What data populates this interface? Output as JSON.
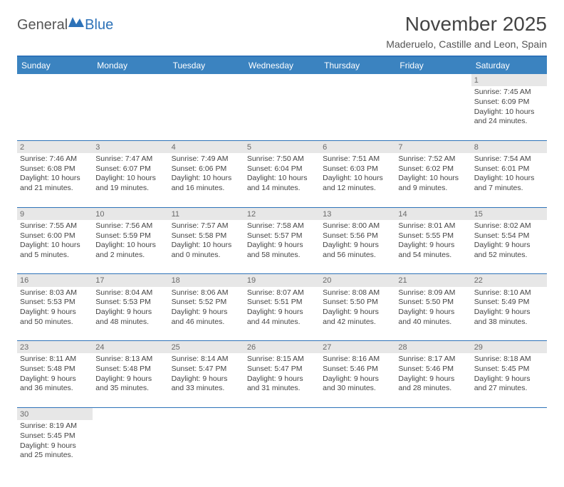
{
  "logo": {
    "general": "General",
    "blue": "Blue"
  },
  "header": {
    "month_title": "November 2025",
    "location": "Maderuelo, Castille and Leon, Spain"
  },
  "colors": {
    "header_bg": "#3b83c0",
    "rule": "#2d72b8",
    "daynum_bg": "#e7e7e7",
    "text": "#444444"
  },
  "day_headers": [
    "Sunday",
    "Monday",
    "Tuesday",
    "Wednesday",
    "Thursday",
    "Friday",
    "Saturday"
  ],
  "weeks": [
    [
      null,
      null,
      null,
      null,
      null,
      null,
      {
        "n": "1",
        "sr": "Sunrise: 7:45 AM",
        "ss": "Sunset: 6:09 PM",
        "d1": "Daylight: 10 hours",
        "d2": "and 24 minutes."
      }
    ],
    [
      {
        "n": "2",
        "sr": "Sunrise: 7:46 AM",
        "ss": "Sunset: 6:08 PM",
        "d1": "Daylight: 10 hours",
        "d2": "and 21 minutes."
      },
      {
        "n": "3",
        "sr": "Sunrise: 7:47 AM",
        "ss": "Sunset: 6:07 PM",
        "d1": "Daylight: 10 hours",
        "d2": "and 19 minutes."
      },
      {
        "n": "4",
        "sr": "Sunrise: 7:49 AM",
        "ss": "Sunset: 6:06 PM",
        "d1": "Daylight: 10 hours",
        "d2": "and 16 minutes."
      },
      {
        "n": "5",
        "sr": "Sunrise: 7:50 AM",
        "ss": "Sunset: 6:04 PM",
        "d1": "Daylight: 10 hours",
        "d2": "and 14 minutes."
      },
      {
        "n": "6",
        "sr": "Sunrise: 7:51 AM",
        "ss": "Sunset: 6:03 PM",
        "d1": "Daylight: 10 hours",
        "d2": "and 12 minutes."
      },
      {
        "n": "7",
        "sr": "Sunrise: 7:52 AM",
        "ss": "Sunset: 6:02 PM",
        "d1": "Daylight: 10 hours",
        "d2": "and 9 minutes."
      },
      {
        "n": "8",
        "sr": "Sunrise: 7:54 AM",
        "ss": "Sunset: 6:01 PM",
        "d1": "Daylight: 10 hours",
        "d2": "and 7 minutes."
      }
    ],
    [
      {
        "n": "9",
        "sr": "Sunrise: 7:55 AM",
        "ss": "Sunset: 6:00 PM",
        "d1": "Daylight: 10 hours",
        "d2": "and 5 minutes."
      },
      {
        "n": "10",
        "sr": "Sunrise: 7:56 AM",
        "ss": "Sunset: 5:59 PM",
        "d1": "Daylight: 10 hours",
        "d2": "and 2 minutes."
      },
      {
        "n": "11",
        "sr": "Sunrise: 7:57 AM",
        "ss": "Sunset: 5:58 PM",
        "d1": "Daylight: 10 hours",
        "d2": "and 0 minutes."
      },
      {
        "n": "12",
        "sr": "Sunrise: 7:58 AM",
        "ss": "Sunset: 5:57 PM",
        "d1": "Daylight: 9 hours",
        "d2": "and 58 minutes."
      },
      {
        "n": "13",
        "sr": "Sunrise: 8:00 AM",
        "ss": "Sunset: 5:56 PM",
        "d1": "Daylight: 9 hours",
        "d2": "and 56 minutes."
      },
      {
        "n": "14",
        "sr": "Sunrise: 8:01 AM",
        "ss": "Sunset: 5:55 PM",
        "d1": "Daylight: 9 hours",
        "d2": "and 54 minutes."
      },
      {
        "n": "15",
        "sr": "Sunrise: 8:02 AM",
        "ss": "Sunset: 5:54 PM",
        "d1": "Daylight: 9 hours",
        "d2": "and 52 minutes."
      }
    ],
    [
      {
        "n": "16",
        "sr": "Sunrise: 8:03 AM",
        "ss": "Sunset: 5:53 PM",
        "d1": "Daylight: 9 hours",
        "d2": "and 50 minutes."
      },
      {
        "n": "17",
        "sr": "Sunrise: 8:04 AM",
        "ss": "Sunset: 5:53 PM",
        "d1": "Daylight: 9 hours",
        "d2": "and 48 minutes."
      },
      {
        "n": "18",
        "sr": "Sunrise: 8:06 AM",
        "ss": "Sunset: 5:52 PM",
        "d1": "Daylight: 9 hours",
        "d2": "and 46 minutes."
      },
      {
        "n": "19",
        "sr": "Sunrise: 8:07 AM",
        "ss": "Sunset: 5:51 PM",
        "d1": "Daylight: 9 hours",
        "d2": "and 44 minutes."
      },
      {
        "n": "20",
        "sr": "Sunrise: 8:08 AM",
        "ss": "Sunset: 5:50 PM",
        "d1": "Daylight: 9 hours",
        "d2": "and 42 minutes."
      },
      {
        "n": "21",
        "sr": "Sunrise: 8:09 AM",
        "ss": "Sunset: 5:50 PM",
        "d1": "Daylight: 9 hours",
        "d2": "and 40 minutes."
      },
      {
        "n": "22",
        "sr": "Sunrise: 8:10 AM",
        "ss": "Sunset: 5:49 PM",
        "d1": "Daylight: 9 hours",
        "d2": "and 38 minutes."
      }
    ],
    [
      {
        "n": "23",
        "sr": "Sunrise: 8:11 AM",
        "ss": "Sunset: 5:48 PM",
        "d1": "Daylight: 9 hours",
        "d2": "and 36 minutes."
      },
      {
        "n": "24",
        "sr": "Sunrise: 8:13 AM",
        "ss": "Sunset: 5:48 PM",
        "d1": "Daylight: 9 hours",
        "d2": "and 35 minutes."
      },
      {
        "n": "25",
        "sr": "Sunrise: 8:14 AM",
        "ss": "Sunset: 5:47 PM",
        "d1": "Daylight: 9 hours",
        "d2": "and 33 minutes."
      },
      {
        "n": "26",
        "sr": "Sunrise: 8:15 AM",
        "ss": "Sunset: 5:47 PM",
        "d1": "Daylight: 9 hours",
        "d2": "and 31 minutes."
      },
      {
        "n": "27",
        "sr": "Sunrise: 8:16 AM",
        "ss": "Sunset: 5:46 PM",
        "d1": "Daylight: 9 hours",
        "d2": "and 30 minutes."
      },
      {
        "n": "28",
        "sr": "Sunrise: 8:17 AM",
        "ss": "Sunset: 5:46 PM",
        "d1": "Daylight: 9 hours",
        "d2": "and 28 minutes."
      },
      {
        "n": "29",
        "sr": "Sunrise: 8:18 AM",
        "ss": "Sunset: 5:45 PM",
        "d1": "Daylight: 9 hours",
        "d2": "and 27 minutes."
      }
    ],
    [
      {
        "n": "30",
        "sr": "Sunrise: 8:19 AM",
        "ss": "Sunset: 5:45 PM",
        "d1": "Daylight: 9 hours",
        "d2": "and 25 minutes."
      },
      null,
      null,
      null,
      null,
      null,
      null
    ]
  ]
}
